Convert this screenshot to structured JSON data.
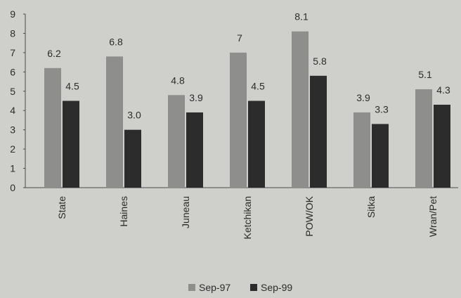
{
  "chart_data": {
    "type": "bar",
    "title": "",
    "xlabel": "",
    "ylabel": "",
    "ylim": [
      0,
      9
    ],
    "yticks": [
      0,
      1,
      2,
      3,
      4,
      5,
      6,
      7,
      8,
      9
    ],
    "categories": [
      "State",
      "Haines",
      "Juneau",
      "Ketchikan",
      "POW/OK",
      "Sitka",
      "Wran/Pet"
    ],
    "series": [
      {
        "name": "Sep-97",
        "color": "#8e8e8c",
        "values": [
          6.2,
          6.8,
          4.8,
          7,
          8.1,
          3.9,
          5.1
        ],
        "labels": [
          "6.2",
          "6.8",
          "4.8",
          "7",
          "8.1",
          "3.9",
          "5.1"
        ]
      },
      {
        "name": "Sep-99",
        "color": "#2c2c2c",
        "values": [
          4.5,
          3.0,
          3.9,
          4.5,
          5.8,
          3.3,
          4.3
        ],
        "labels": [
          "4.5",
          "3.0",
          "3.9",
          "4.5",
          "5.8",
          "3.3",
          "4.3"
        ]
      }
    ],
    "legend_position": "bottom",
    "grid": false
  }
}
